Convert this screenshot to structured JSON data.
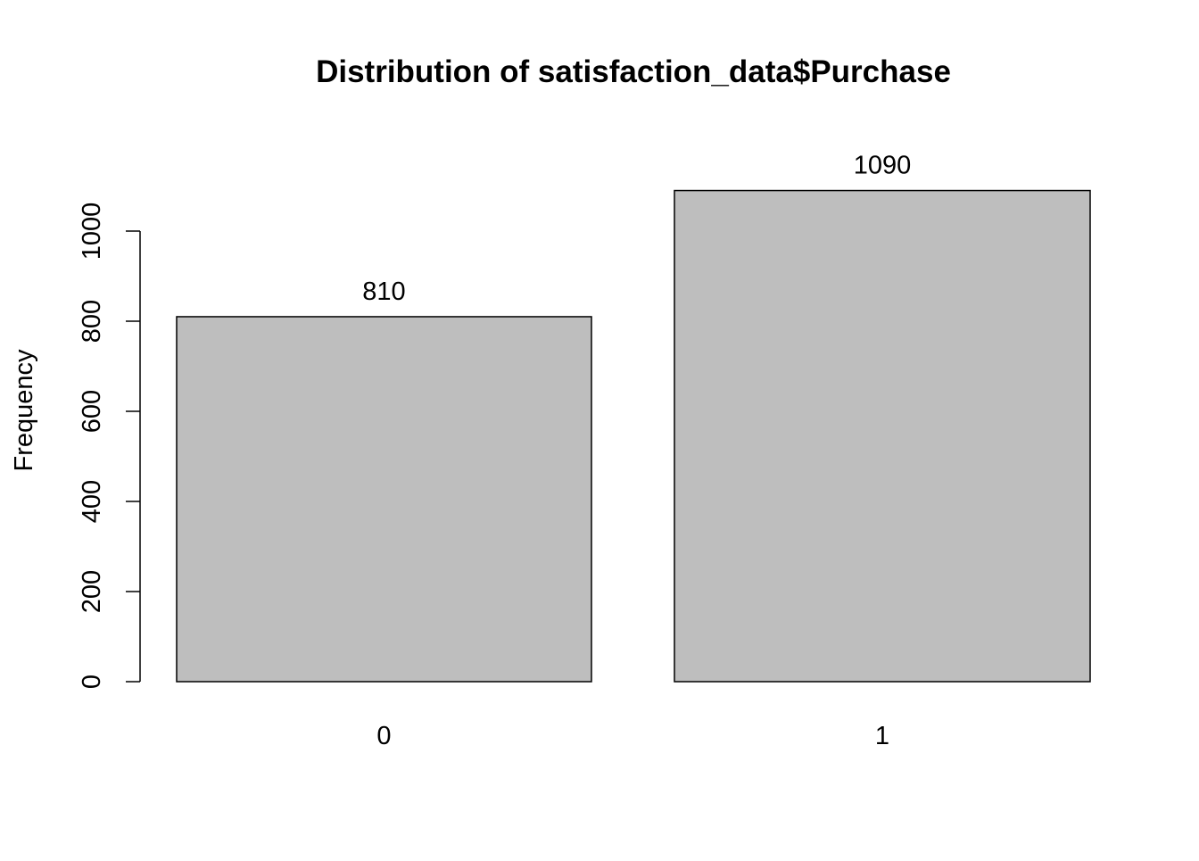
{
  "chart_data": {
    "type": "bar",
    "title": "Distribution of satisfaction_data$Purchase",
    "xlabel": "",
    "ylabel": "Frequency",
    "categories": [
      "0",
      "1"
    ],
    "values": [
      810,
      1090
    ],
    "data_labels": [
      "810",
      "1090"
    ],
    "yticks": [
      0,
      200,
      400,
      600,
      800,
      1000
    ],
    "ytick_labels": [
      "0",
      "200",
      "400",
      "600",
      "800",
      "1000"
    ],
    "ylim": [
      0,
      1090
    ],
    "grid": false,
    "legend": "none",
    "bar_color": "#bebebe",
    "bar_edge_color": "#000000"
  }
}
